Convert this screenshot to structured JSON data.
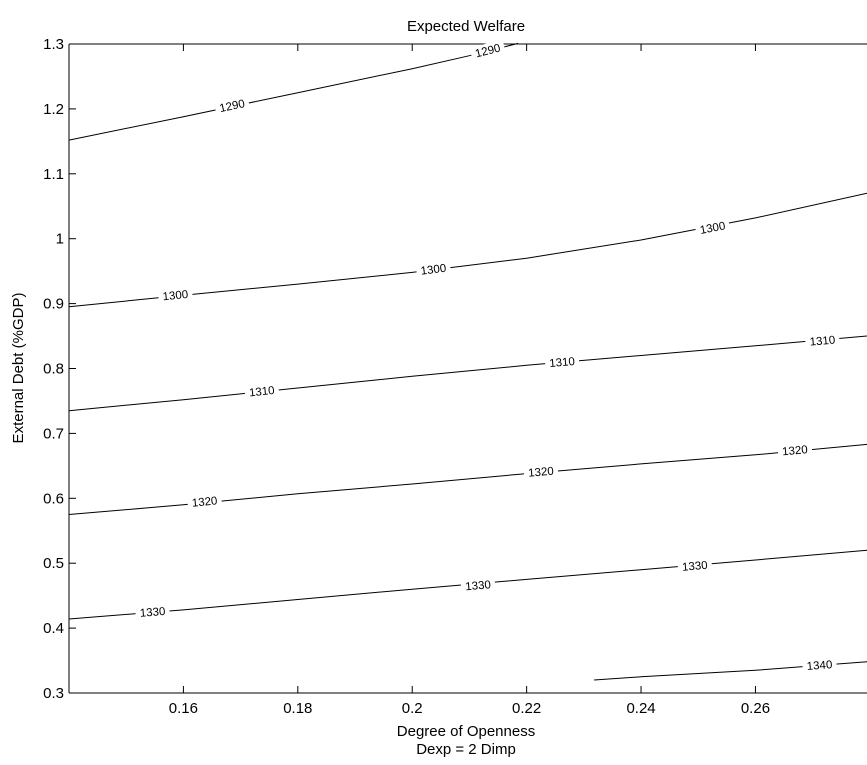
{
  "chart_data": {
    "type": "contour",
    "title": "Expected Welfare",
    "xlabel": "Degree of Openness",
    "xlabel_line2": "Dexp = 2 Dimp",
    "ylabel": "External Debt (%GDP)",
    "xlim": [
      0.14,
      0.2795
    ],
    "ylim": [
      0.3,
      1.3
    ],
    "x_ticks": [
      0.16,
      0.18,
      0.2,
      0.22,
      0.24,
      0.26
    ],
    "x_tick_labels": [
      "0.16",
      "0.18",
      "0.2",
      "0.22",
      "0.24",
      "0.26"
    ],
    "y_ticks": [
      0.3,
      0.4,
      0.5,
      0.6,
      0.7,
      0.8,
      0.9,
      1.0,
      1.1,
      1.2,
      1.3
    ],
    "y_tick_labels": [
      "0.3",
      "0.4",
      "0.5",
      "0.6",
      "0.7",
      "0.8",
      "0.9",
      "1",
      "1.1",
      "1.2",
      "1.3"
    ],
    "grid": false,
    "contours": [
      {
        "level": "1290",
        "points": [
          [
            0.14,
            1.152
          ],
          [
            0.16,
            1.188
          ],
          [
            0.18,
            1.225
          ],
          [
            0.2,
            1.262
          ],
          [
            0.21,
            1.282
          ],
          [
            0.2185,
            1.301
          ]
        ],
        "labels": [
          {
            "x": 0.1685,
            "y": 1.205
          },
          {
            "x": 0.2132,
            "y": 1.29
          }
        ]
      },
      {
        "level": "1300",
        "points": [
          [
            0.14,
            0.895
          ],
          [
            0.16,
            0.913
          ],
          [
            0.18,
            0.93
          ],
          [
            0.2,
            0.948
          ],
          [
            0.22,
            0.97
          ],
          [
            0.24,
            0.998
          ],
          [
            0.26,
            1.032
          ],
          [
            0.2795,
            1.07
          ]
        ],
        "labels": [
          {
            "x": 0.1586,
            "y": 0.913
          },
          {
            "x": 0.2037,
            "y": 0.953
          },
          {
            "x": 0.2525,
            "y": 1.017
          }
        ]
      },
      {
        "level": "1310",
        "points": [
          [
            0.14,
            0.735
          ],
          [
            0.16,
            0.752
          ],
          [
            0.18,
            0.77
          ],
          [
            0.2,
            0.788
          ],
          [
            0.22,
            0.805
          ],
          [
            0.24,
            0.82
          ],
          [
            0.26,
            0.835
          ],
          [
            0.2795,
            0.85
          ]
        ],
        "labels": [
          {
            "x": 0.1737,
            "y": 0.765
          },
          {
            "x": 0.2262,
            "y": 0.81
          },
          {
            "x": 0.2717,
            "y": 0.843
          }
        ]
      },
      {
        "level": "1320",
        "points": [
          [
            0.14,
            0.575
          ],
          [
            0.16,
            0.59
          ],
          [
            0.18,
            0.607
          ],
          [
            0.2,
            0.622
          ],
          [
            0.22,
            0.638
          ],
          [
            0.24,
            0.653
          ],
          [
            0.26,
            0.667
          ],
          [
            0.2795,
            0.683
          ]
        ],
        "labels": [
          {
            "x": 0.1637,
            "y": 0.595
          },
          {
            "x": 0.2225,
            "y": 0.641
          },
          {
            "x": 0.2669,
            "y": 0.674
          }
        ]
      },
      {
        "level": "1330",
        "points": [
          [
            0.14,
            0.414
          ],
          [
            0.16,
            0.428
          ],
          [
            0.18,
            0.444
          ],
          [
            0.2,
            0.46
          ],
          [
            0.22,
            0.475
          ],
          [
            0.24,
            0.49
          ],
          [
            0.26,
            0.505
          ],
          [
            0.2795,
            0.52
          ]
        ],
        "labels": [
          {
            "x": 0.1546,
            "y": 0.425
          },
          {
            "x": 0.2115,
            "y": 0.466
          },
          {
            "x": 0.2494,
            "y": 0.496
          }
        ]
      },
      {
        "level": "1340",
        "points": [
          [
            0.2318,
            0.32
          ],
          [
            0.24,
            0.325
          ],
          [
            0.26,
            0.335
          ],
          [
            0.2795,
            0.348
          ]
        ],
        "labels": [
          {
            "x": 0.2712,
            "y": 0.343
          }
        ]
      }
    ]
  }
}
